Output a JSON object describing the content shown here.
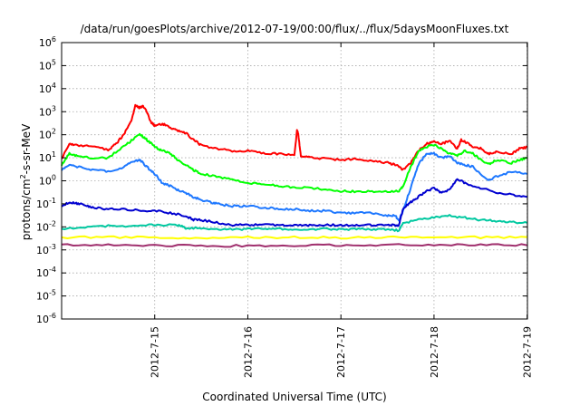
{
  "chart_data": {
    "type": "line",
    "title": "/data/run/goesPlots/archive/2012-07-19/00:00/flux/../flux/5daysMoonFluxes.txt",
    "xlabel": "Coordinated Universal Time (UTC)",
    "ylabel": "protons/cm2-s-sr-MeV",
    "ylabel_parts": {
      "base": "protons/cm",
      "sup": "2",
      "rest": "-s-sr-MeV"
    },
    "xlim": [
      "2012-07-14T00:00",
      "2012-07-19T00:05"
    ],
    "ylim": [
      1e-06,
      1000000.0
    ],
    "yscale": "log",
    "grid": true,
    "x_ticks": [
      {
        "x": "2012-07-15T00:00",
        "label": "2012-7-15"
      },
      {
        "x": "2012-07-16T00:00",
        "label": "2012-7-16"
      },
      {
        "x": "2012-07-17T00:00",
        "label": "2012-7-17"
      },
      {
        "x": "2012-07-18T00:00",
        "label": "2012-7-18"
      },
      {
        "x": "2012-07-19T00:00",
        "label": "2012-7-19"
      }
    ],
    "y_ticks": [
      {
        "value": 1e-06,
        "base": "10",
        "exp": "-6"
      },
      {
        "value": 1e-05,
        "base": "10",
        "exp": "-5"
      },
      {
        "value": 0.0001,
        "base": "10",
        "exp": "-4"
      },
      {
        "value": 0.001,
        "base": "10",
        "exp": "-3"
      },
      {
        "value": 0.01,
        "base": "10",
        "exp": "-2"
      },
      {
        "value": 0.1,
        "base": "10",
        "exp": "-1"
      },
      {
        "value": 1,
        "base": "10",
        "exp": "0"
      },
      {
        "value": 10,
        "base": "10",
        "exp": "1"
      },
      {
        "value": 100,
        "base": "10",
        "exp": "2"
      },
      {
        "value": 1000,
        "base": "10",
        "exp": "3"
      },
      {
        "value": 10000,
        "base": "10",
        "exp": "4"
      },
      {
        "value": 100000,
        "base": "10",
        "exp": "5"
      },
      {
        "value": 1000000,
        "base": "10",
        "exp": "6"
      }
    ],
    "series": [
      {
        "color": "#ff0000",
        "x": [
          "2012-07-14T00:00",
          "2012-07-14T02:00",
          "2012-07-14T04:00",
          "2012-07-14T08:00",
          "2012-07-14T12:00",
          "2012-07-14T14:00",
          "2012-07-14T16:00",
          "2012-07-14T18:00",
          "2012-07-14T19:00",
          "2012-07-14T20:00",
          "2012-07-14T21:00",
          "2012-07-14T22:00",
          "2012-07-14T23:00",
          "2012-07-15T00:00",
          "2012-07-15T02:00",
          "2012-07-15T04:00",
          "2012-07-15T06:00",
          "2012-07-15T08:00",
          "2012-07-15T10:00",
          "2012-07-15T12:00",
          "2012-07-15T16:00",
          "2012-07-15T20:00",
          "2012-07-16T00:00",
          "2012-07-16T04:00",
          "2012-07-16T08:00",
          "2012-07-16T12:00",
          "2012-07-16T12:40",
          "2012-07-16T13:00",
          "2012-07-16T13:40",
          "2012-07-16T16:00",
          "2012-07-16T20:00",
          "2012-07-17T00:00",
          "2012-07-17T04:00",
          "2012-07-17T08:00",
          "2012-07-17T12:00",
          "2012-07-17T14:00",
          "2012-07-17T16:00",
          "2012-07-17T18:00",
          "2012-07-17T20:00",
          "2012-07-17T22:00",
          "2012-07-18T00:00",
          "2012-07-18T02:00",
          "2012-07-18T04:00",
          "2012-07-18T06:00",
          "2012-07-18T07:00",
          "2012-07-18T08:00",
          "2012-07-18T10:00",
          "2012-07-18T12:00",
          "2012-07-18T14:00",
          "2012-07-18T16:00",
          "2012-07-18T20:00",
          "2012-07-18T22:00",
          "2012-07-19T00:00"
        ],
        "values": [
          9,
          40,
          35,
          30,
          22,
          40,
          100,
          400,
          2000,
          1500,
          1800,
          1000,
          350,
          250,
          300,
          200,
          150,
          120,
          60,
          35,
          25,
          20,
          20,
          15,
          15,
          12,
          150,
          110,
          12,
          10,
          9,
          8,
          9,
          7,
          6,
          5,
          3,
          6,
          20,
          40,
          50,
          40,
          55,
          25,
          60,
          50,
          30,
          25,
          15,
          18,
          15,
          25,
          28
        ]
      },
      {
        "color": "#00ff00",
        "x": [
          "2012-07-14T00:00",
          "2012-07-14T02:00",
          "2012-07-14T04:00",
          "2012-07-14T08:00",
          "2012-07-14T12:00",
          "2012-07-14T16:00",
          "2012-07-14T18:00",
          "2012-07-14T20:00",
          "2012-07-14T21:00",
          "2012-07-14T22:00",
          "2012-07-15T00:00",
          "2012-07-15T02:00",
          "2012-07-15T04:00",
          "2012-07-15T06:00",
          "2012-07-15T08:00",
          "2012-07-15T10:00",
          "2012-07-15T12:00",
          "2012-07-15T16:00",
          "2012-07-15T20:00",
          "2012-07-16T00:00",
          "2012-07-16T04:00",
          "2012-07-16T08:00",
          "2012-07-16T12:00",
          "2012-07-16T16:00",
          "2012-07-16T20:00",
          "2012-07-17T00:00",
          "2012-07-17T04:00",
          "2012-07-17T08:00",
          "2012-07-17T12:00",
          "2012-07-17T15:00",
          "2012-07-17T16:00",
          "2012-07-17T18:00",
          "2012-07-17T20:00",
          "2012-07-17T22:00",
          "2012-07-18T00:00",
          "2012-07-18T02:00",
          "2012-07-18T04:00",
          "2012-07-18T06:00",
          "2012-07-18T08:00",
          "2012-07-18T10:00",
          "2012-07-18T14:00",
          "2012-07-18T16:00",
          "2012-07-18T20:00",
          "2012-07-18T22:00",
          "2012-07-19T00:00"
        ],
        "values": [
          5,
          15,
          12,
          10,
          10,
          30,
          55,
          110,
          80,
          60,
          30,
          20,
          15,
          8,
          5,
          3,
          2,
          1.5,
          1.1,
          0.8,
          0.7,
          0.6,
          0.5,
          0.5,
          0.4,
          0.35,
          0.35,
          0.35,
          0.35,
          0.35,
          0.6,
          4,
          20,
          30,
          35,
          25,
          15,
          12,
          20,
          15,
          5,
          8,
          6,
          8,
          10
        ]
      },
      {
        "color": "#1e78ff",
        "x": [
          "2012-07-14T00:00",
          "2012-07-14T02:00",
          "2012-07-14T04:00",
          "2012-07-14T08:00",
          "2012-07-14T12:00",
          "2012-07-14T16:00",
          "2012-07-14T18:00",
          "2012-07-14T20:00",
          "2012-07-14T21:00",
          "2012-07-14T22:00",
          "2012-07-15T00:00",
          "2012-07-15T02:00",
          "2012-07-15T04:00",
          "2012-07-15T06:00",
          "2012-07-15T08:00",
          "2012-07-15T10:00",
          "2012-07-15T12:00",
          "2012-07-15T14:00",
          "2012-07-15T16:00",
          "2012-07-15T20:00",
          "2012-07-16T00:00",
          "2012-07-16T04:00",
          "2012-07-16T08:00",
          "2012-07-16T12:00",
          "2012-07-16T16:00",
          "2012-07-16T20:00",
          "2012-07-17T00:00",
          "2012-07-17T04:00",
          "2012-07-17T08:00",
          "2012-07-17T12:00",
          "2012-07-17T14:00",
          "2012-07-17T15:00",
          "2012-07-17T16:00",
          "2012-07-17T18:00",
          "2012-07-17T20:00",
          "2012-07-17T22:00",
          "2012-07-18T00:00",
          "2012-07-18T02:00",
          "2012-07-18T04:00",
          "2012-07-18T06:00",
          "2012-07-18T08:00",
          "2012-07-18T10:00",
          "2012-07-18T14:00",
          "2012-07-18T16:00",
          "2012-07-18T20:00",
          "2012-07-19T00:00"
        ],
        "values": [
          3,
          5,
          4,
          3,
          2.5,
          4,
          7,
          8,
          6,
          4,
          2,
          0.8,
          0.6,
          0.4,
          0.3,
          0.2,
          0.15,
          0.12,
          0.1,
          0.08,
          0.08,
          0.07,
          0.06,
          0.06,
          0.05,
          0.05,
          0.04,
          0.04,
          0.04,
          0.03,
          0.03,
          0.02,
          0.05,
          0.5,
          5,
          15,
          15,
          10,
          12,
          6,
          5,
          4,
          1,
          1.5,
          2.5,
          2
        ]
      },
      {
        "color": "#0000d0",
        "x": [
          "2012-07-14T00:00",
          "2012-07-14T02:00",
          "2012-07-14T04:00",
          "2012-07-14T06:00",
          "2012-07-14T08:00",
          "2012-07-14T12:00",
          "2012-07-14T16:00",
          "2012-07-14T20:00",
          "2012-07-15T00:00",
          "2012-07-15T04:00",
          "2012-07-15T08:00",
          "2012-07-15T10:00",
          "2012-07-15T12:00",
          "2012-07-15T16:00",
          "2012-07-15T20:00",
          "2012-07-16T00:00",
          "2012-07-16T04:00",
          "2012-07-16T08:00",
          "2012-07-16T12:00",
          "2012-07-16T16:00",
          "2012-07-16T20:00",
          "2012-07-17T00:00",
          "2012-07-17T04:00",
          "2012-07-17T08:00",
          "2012-07-17T12:00",
          "2012-07-17T14:00",
          "2012-07-17T15:00",
          "2012-07-17T16:00",
          "2012-07-17T18:00",
          "2012-07-17T20:00",
          "2012-07-17T22:00",
          "2012-07-18T00:00",
          "2012-07-18T02:00",
          "2012-07-18T04:00",
          "2012-07-18T06:00",
          "2012-07-18T08:00",
          "2012-07-18T12:00",
          "2012-07-18T16:00",
          "2012-07-18T20:00",
          "2012-07-19T00:00"
        ],
        "values": [
          0.08,
          0.12,
          0.1,
          0.09,
          0.07,
          0.06,
          0.06,
          0.05,
          0.05,
          0.04,
          0.03,
          0.02,
          0.02,
          0.015,
          0.012,
          0.012,
          0.012,
          0.012,
          0.012,
          0.012,
          0.012,
          0.012,
          0.012,
          0.012,
          0.012,
          0.012,
          0.012,
          0.06,
          0.12,
          0.2,
          0.35,
          0.5,
          0.3,
          0.4,
          1.2,
          0.8,
          0.5,
          0.3,
          0.25,
          0.2
        ]
      },
      {
        "color": "#00c8a0",
        "x": [
          "2012-07-14T00:00",
          "2012-07-14T06:00",
          "2012-07-14T12:00",
          "2012-07-14T18:00",
          "2012-07-15T00:00",
          "2012-07-15T06:00",
          "2012-07-15T08:00",
          "2012-07-15T12:00",
          "2012-07-15T16:00",
          "2012-07-15T20:00",
          "2012-07-16T00:00",
          "2012-07-16T04:00",
          "2012-07-16T08:00",
          "2012-07-16T12:00",
          "2012-07-16T16:00",
          "2012-07-16T20:00",
          "2012-07-17T00:00",
          "2012-07-17T04:00",
          "2012-07-17T08:00",
          "2012-07-17T12:00",
          "2012-07-17T15:00",
          "2012-07-17T16:00",
          "2012-07-17T20:00",
          "2012-07-18T00:00",
          "2012-07-18T04:00",
          "2012-07-18T08:00",
          "2012-07-18T12:00",
          "2012-07-18T16:00",
          "2012-07-18T20:00",
          "2012-07-19T00:00"
        ],
        "values": [
          0.008,
          0.01,
          0.011,
          0.011,
          0.012,
          0.012,
          0.009,
          0.009,
          0.008,
          0.008,
          0.008,
          0.008,
          0.008,
          0.008,
          0.008,
          0.008,
          0.008,
          0.008,
          0.008,
          0.008,
          0.007,
          0.015,
          0.02,
          0.025,
          0.03,
          0.025,
          0.02,
          0.018,
          0.016,
          0.015
        ]
      },
      {
        "color": "#ffff00",
        "x": [
          "2012-07-14T00:00",
          "2012-07-14T12:00",
          "2012-07-15T00:00",
          "2012-07-15T12:00",
          "2012-07-16T00:00",
          "2012-07-16T12:00",
          "2012-07-17T00:00",
          "2012-07-17T12:00",
          "2012-07-18T00:00",
          "2012-07-18T12:00",
          "2012-07-19T00:00"
        ],
        "values": [
          0.0035,
          0.0036,
          0.0035,
          0.0034,
          0.0035,
          0.0035,
          0.0034,
          0.0035,
          0.0036,
          0.0035,
          0.0036
        ]
      },
      {
        "color": "#a0306e",
        "x": [
          "2012-07-14T00:00",
          "2012-07-14T12:00",
          "2012-07-15T00:00",
          "2012-07-15T12:00",
          "2012-07-16T00:00",
          "2012-07-16T12:00",
          "2012-07-17T00:00",
          "2012-07-17T12:00",
          "2012-07-18T00:00",
          "2012-07-18T12:00",
          "2012-07-19T00:00"
        ],
        "values": [
          0.0016,
          0.0017,
          0.0016,
          0.0015,
          0.0015,
          0.0016,
          0.0016,
          0.0016,
          0.0017,
          0.0017,
          0.0016
        ]
      }
    ]
  }
}
